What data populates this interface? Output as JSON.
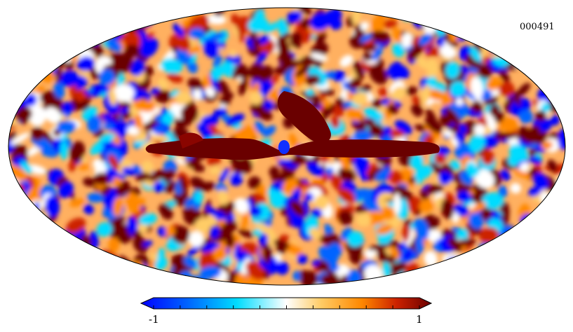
{
  "map": {
    "id_label": "000491",
    "projection": "mollweide",
    "description_colors": {
      "low": "#0000ff",
      "mid_low": "#00c8ff",
      "mid": "#ffffff",
      "mid_high": "#ffa000",
      "high": "#6a0000"
    }
  },
  "colorbar": {
    "min_label": "-1",
    "max_label": "1",
    "stops": [
      "#0000ff",
      "#0064ff",
      "#00dcff",
      "#ffffff",
      "#ffcc66",
      "#ff8800",
      "#cc2200",
      "#6a0000"
    ]
  }
}
